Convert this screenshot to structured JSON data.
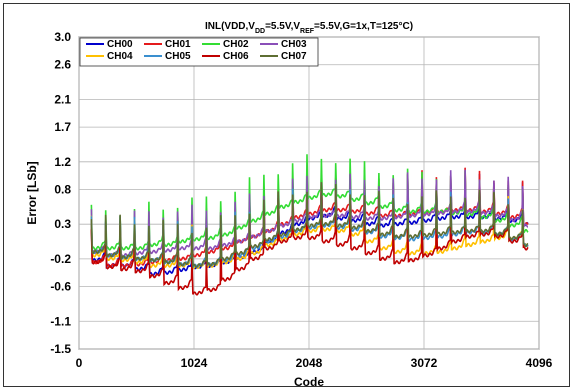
{
  "chart_data": {
    "type": "line",
    "title": {
      "parts": [
        "INL(VDD,V",
        "DD",
        "=5.5V,V",
        "REF",
        "=5.5V,G=1x,T=125°C)"
      ]
    },
    "xlabel": "Code",
    "ylabel": "Error [LSb]",
    "xlim": [
      0,
      4096
    ],
    "ylim": [
      -1.5,
      3.0
    ],
    "x_ticks": [
      0,
      1024,
      2048,
      3072,
      4096
    ],
    "y_ticks": [
      3.0,
      2.6,
      2.1,
      1.7,
      1.2,
      0.8,
      0.3,
      -0.2,
      -0.6,
      -1.1,
      -1.5
    ],
    "y_tick_labels": [
      "3.0",
      "2.6",
      "2.1",
      "1.7",
      "1.2",
      "0.8",
      "0.3",
      "-0.2",
      "-0.6",
      "-1.1",
      "-1.5"
    ],
    "grid": true,
    "legend_position": "top-left",
    "x_start": 110,
    "x_end": 4000,
    "period": 128,
    "series": [
      {
        "name": "CH00",
        "color": "#0000cc",
        "troughs": [
          -0.22,
          -0.3,
          -0.3,
          -0.35,
          -0.42,
          -0.4,
          -0.36,
          -0.32,
          -0.3,
          -0.25,
          -0.18,
          -0.1,
          0.05,
          0.18,
          0.3,
          0.38,
          0.42,
          0.38,
          0.35,
          0.3,
          0.28,
          0.3,
          0.32,
          0.35,
          0.38,
          0.4,
          0.4,
          0.4,
          0.38,
          0.35,
          0.3
        ]
      },
      {
        "name": "CH01",
        "color": "#e41a1c",
        "troughs": [
          -0.25,
          -0.3,
          -0.3,
          -0.28,
          -0.25,
          -0.22,
          -0.2,
          -0.15,
          -0.1,
          -0.05,
          0.05,
          0.12,
          0.2,
          0.3,
          0.4,
          0.45,
          0.5,
          0.5,
          0.48,
          0.45,
          0.42,
          0.42,
          0.44,
          0.46,
          0.48,
          0.5,
          0.5,
          0.48,
          0.45,
          0.4,
          0.3
        ]
      },
      {
        "name": "CH02",
        "color": "#33dd33",
        "troughs": [
          -0.05,
          -0.05,
          -0.05,
          -0.05,
          0.0,
          0.0,
          0.05,
          0.08,
          0.1,
          0.15,
          0.25,
          0.35,
          0.45,
          0.55,
          0.62,
          0.68,
          0.72,
          0.7,
          0.65,
          0.6,
          0.55,
          0.5,
          0.48,
          0.48,
          0.48,
          0.46,
          0.44,
          0.4,
          0.35,
          0.28,
          0.2
        ]
      },
      {
        "name": "CH03",
        "color": "#8a4fb8",
        "troughs": [
          -0.1,
          -0.15,
          -0.15,
          -0.12,
          -0.1,
          -0.08,
          -0.05,
          -0.05,
          -0.05,
          0.0,
          0.05,
          0.12,
          0.2,
          0.28,
          0.35,
          0.4,
          0.42,
          0.42,
          0.4,
          0.38,
          0.38,
          0.4,
          0.42,
          0.44,
          0.46,
          0.48,
          0.48,
          0.46,
          0.42,
          0.36,
          0.28
        ]
      },
      {
        "name": "CH04",
        "color": "#ffc000",
        "troughs": [
          -0.15,
          -0.2,
          -0.22,
          -0.25,
          -0.3,
          -0.3,
          -0.3,
          -0.32,
          -0.3,
          -0.25,
          -0.2,
          -0.12,
          0.0,
          0.08,
          0.15,
          0.2,
          0.22,
          0.2,
          0.15,
          0.05,
          -0.05,
          -0.1,
          -0.12,
          -0.12,
          -0.1,
          -0.05,
          0.0,
          0.05,
          0.1,
          0.08,
          0.0
        ]
      },
      {
        "name": "CH05",
        "color": "#3a8fcf",
        "troughs": [
          -0.1,
          -0.15,
          -0.18,
          -0.2,
          -0.22,
          -0.25,
          -0.28,
          -0.3,
          -0.28,
          -0.22,
          -0.15,
          -0.05,
          0.05,
          0.12,
          0.2,
          0.25,
          0.28,
          0.25,
          0.22,
          0.18,
          0.12,
          0.1,
          0.08,
          0.1,
          0.12,
          0.15,
          0.18,
          0.18,
          0.15,
          0.08,
          0.0
        ]
      },
      {
        "name": "CH06",
        "color": "#c00000",
        "troughs": [
          -0.25,
          -0.32,
          -0.35,
          -0.38,
          -0.45,
          -0.55,
          -0.62,
          -0.7,
          -0.65,
          -0.5,
          -0.35,
          -0.2,
          -0.05,
          0.05,
          0.1,
          0.1,
          0.05,
          0.0,
          -0.05,
          -0.12,
          -0.2,
          -0.25,
          -0.22,
          -0.15,
          -0.05,
          0.05,
          0.12,
          0.15,
          0.12,
          0.05,
          -0.05
        ]
      },
      {
        "name": "CH07",
        "color": "#5e6e32",
        "troughs": [
          -0.1,
          -0.15,
          -0.18,
          -0.2,
          -0.22,
          -0.25,
          -0.28,
          -0.3,
          -0.28,
          -0.2,
          -0.12,
          -0.02,
          0.08,
          0.15,
          0.22,
          0.28,
          0.3,
          0.28,
          0.25,
          0.2,
          0.15,
          0.12,
          0.12,
          0.14,
          0.16,
          0.18,
          0.2,
          0.2,
          0.16,
          0.1,
          0.0
        ]
      }
    ]
  }
}
